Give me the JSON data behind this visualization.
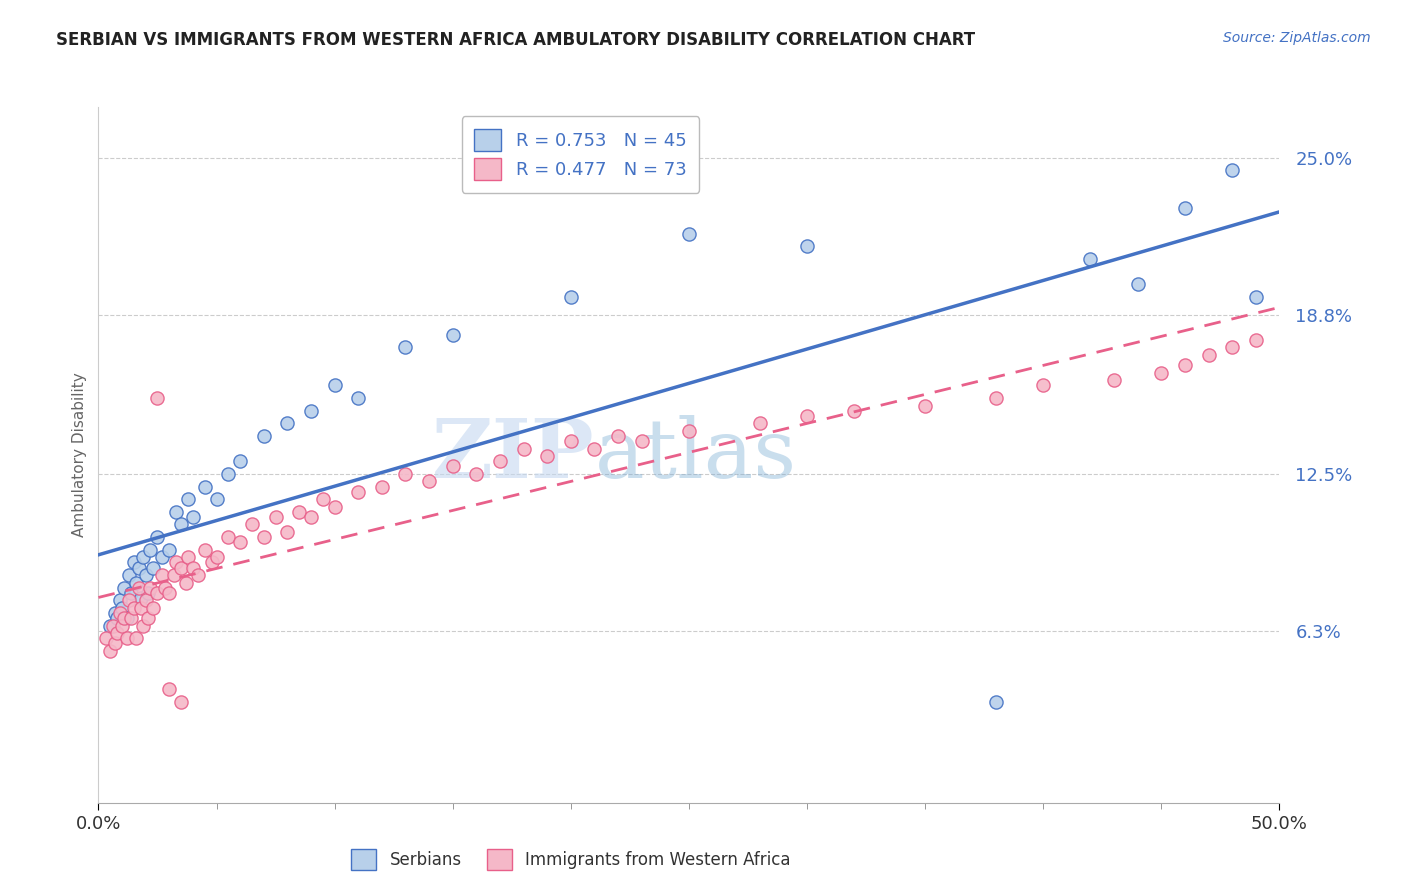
{
  "title": "SERBIAN VS IMMIGRANTS FROM WESTERN AFRICA AMBULATORY DISABILITY CORRELATION CHART",
  "source": "Source: ZipAtlas.com",
  "ylabel": "Ambulatory Disability",
  "series1_label": "Serbians",
  "series2_label": "Immigrants from Western Africa",
  "series1_R": 0.753,
  "series1_N": 45,
  "series2_R": 0.477,
  "series2_N": 73,
  "series1_color": "#b8d0ea",
  "series2_color": "#f5b8c8",
  "series1_line_color": "#4472c4",
  "series2_line_color": "#e8608a",
  "xmin": 0.0,
  "xmax": 0.5,
  "ymin": -0.005,
  "ymax": 0.27,
  "yticks": [
    0.063,
    0.125,
    0.188,
    0.25
  ],
  "ytick_labels": [
    "6.3%",
    "12.5%",
    "18.8%",
    "25.0%"
  ],
  "watermark_zip": "ZIP",
  "watermark_atlas": "atlas",
  "background_color": "#ffffff",
  "series1_x": [
    0.005,
    0.007,
    0.008,
    0.009,
    0.01,
    0.011,
    0.012,
    0.013,
    0.014,
    0.015,
    0.016,
    0.017,
    0.018,
    0.019,
    0.02,
    0.021,
    0.022,
    0.023,
    0.025,
    0.027,
    0.03,
    0.033,
    0.035,
    0.038,
    0.04,
    0.045,
    0.05,
    0.055,
    0.06,
    0.07,
    0.08,
    0.09,
    0.1,
    0.11,
    0.13,
    0.15,
    0.2,
    0.25,
    0.3,
    0.38,
    0.42,
    0.44,
    0.46,
    0.48,
    0.49
  ],
  "series1_y": [
    0.065,
    0.07,
    0.068,
    0.075,
    0.072,
    0.08,
    0.068,
    0.085,
    0.078,
    0.09,
    0.082,
    0.088,
    0.076,
    0.092,
    0.085,
    0.078,
    0.095,
    0.088,
    0.1,
    0.092,
    0.095,
    0.11,
    0.105,
    0.115,
    0.108,
    0.12,
    0.115,
    0.125,
    0.13,
    0.14,
    0.145,
    0.15,
    0.16,
    0.155,
    0.175,
    0.18,
    0.195,
    0.22,
    0.215,
    0.035,
    0.21,
    0.2,
    0.23,
    0.245,
    0.195
  ],
  "series2_x": [
    0.003,
    0.005,
    0.006,
    0.007,
    0.008,
    0.009,
    0.01,
    0.011,
    0.012,
    0.013,
    0.014,
    0.015,
    0.016,
    0.017,
    0.018,
    0.019,
    0.02,
    0.021,
    0.022,
    0.023,
    0.025,
    0.027,
    0.028,
    0.03,
    0.032,
    0.033,
    0.035,
    0.037,
    0.038,
    0.04,
    0.042,
    0.045,
    0.048,
    0.05,
    0.055,
    0.06,
    0.065,
    0.07,
    0.075,
    0.08,
    0.085,
    0.09,
    0.095,
    0.1,
    0.11,
    0.12,
    0.13,
    0.14,
    0.15,
    0.16,
    0.17,
    0.18,
    0.19,
    0.2,
    0.21,
    0.22,
    0.23,
    0.25,
    0.28,
    0.3,
    0.32,
    0.35,
    0.38,
    0.4,
    0.43,
    0.45,
    0.46,
    0.47,
    0.48,
    0.49,
    0.025,
    0.03,
    0.035
  ],
  "series2_y": [
    0.06,
    0.055,
    0.065,
    0.058,
    0.062,
    0.07,
    0.065,
    0.068,
    0.06,
    0.075,
    0.068,
    0.072,
    0.06,
    0.08,
    0.072,
    0.065,
    0.075,
    0.068,
    0.08,
    0.072,
    0.078,
    0.085,
    0.08,
    0.078,
    0.085,
    0.09,
    0.088,
    0.082,
    0.092,
    0.088,
    0.085,
    0.095,
    0.09,
    0.092,
    0.1,
    0.098,
    0.105,
    0.1,
    0.108,
    0.102,
    0.11,
    0.108,
    0.115,
    0.112,
    0.118,
    0.12,
    0.125,
    0.122,
    0.128,
    0.125,
    0.13,
    0.135,
    0.132,
    0.138,
    0.135,
    0.14,
    0.138,
    0.142,
    0.145,
    0.148,
    0.15,
    0.152,
    0.155,
    0.16,
    0.162,
    0.165,
    0.168,
    0.172,
    0.175,
    0.178,
    0.155,
    0.04,
    0.035
  ]
}
